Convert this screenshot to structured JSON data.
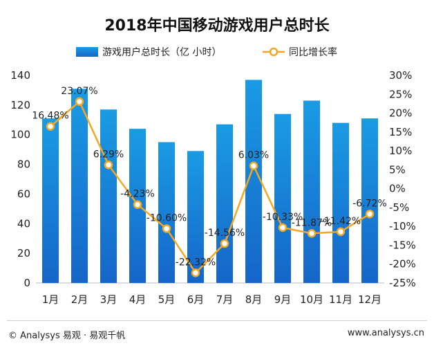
{
  "chart_data": {
    "type": "bar+line",
    "title": "2018年中国移动游戏用户总时长",
    "categories": [
      "1月",
      "2月",
      "3月",
      "4月",
      "5月",
      "6月",
      "7月",
      "8月",
      "9月",
      "10月",
      "11月",
      "12月"
    ],
    "series": [
      {
        "name": "游戏用户总时长（亿 小时）",
        "type": "bar",
        "axis": "left",
        "values": [
          111,
          131,
          117,
          104,
          95,
          89,
          107,
          137,
          114,
          123,
          108,
          111
        ]
      },
      {
        "name": "同比增长率",
        "type": "line",
        "axis": "right",
        "values": [
          16.48,
          23.07,
          6.29,
          -4.23,
          -10.6,
          -22.32,
          -14.56,
          6.03,
          -10.33,
          -11.87,
          -11.42,
          -6.72
        ],
        "labels": [
          "16.48%",
          "23.07%",
          "6.29%",
          "-4.23%",
          "-10.60%",
          "-22.32%",
          "-14.56%",
          "6.03%",
          "-10.33%",
          "-11.87%",
          "-11.42%",
          "-6.72%"
        ]
      }
    ],
    "left_axis": {
      "min": 0,
      "max": 140,
      "ticks": [
        "0",
        "20",
        "40",
        "60",
        "80",
        "100",
        "120",
        "140"
      ]
    },
    "right_axis": {
      "min": -25,
      "max": 30,
      "ticks": [
        "-25%",
        "-20%",
        "-15%",
        "-10%",
        "-5%",
        "0%",
        "5%",
        "10%",
        "15%",
        "20%",
        "25%",
        "30%"
      ]
    },
    "legend_position": "top-center",
    "colors": {
      "bar_top": "#1a9be4",
      "bar_bottom": "#1565c8",
      "line": "#f5a623",
      "title": "#111111",
      "axis": "#222222"
    }
  },
  "footer": {
    "left": "© Analysys 易观 · 易观千帆",
    "right": "www.analysys.cn"
  }
}
